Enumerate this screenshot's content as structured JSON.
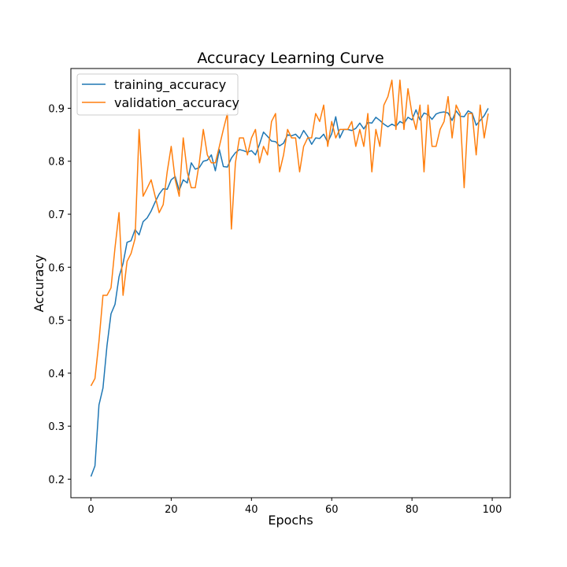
{
  "chart_data": {
    "type": "line",
    "title": "Accuracy Learning Curve",
    "xlabel": "Epochs",
    "ylabel": "Accuracy",
    "xlim": [
      -5,
      104.5
    ],
    "ylim": [
      0.165,
      0.975
    ],
    "xticks": [
      0,
      20,
      40,
      60,
      80,
      100
    ],
    "yticks": [
      0.2,
      0.3,
      0.4,
      0.5,
      0.6,
      0.7,
      0.8,
      0.9
    ],
    "grid": false,
    "legend_position": "top-left",
    "series": [
      {
        "name": "training_accuracy",
        "color": "#1f77b4",
        "values": [
          0.205,
          0.225,
          0.34,
          0.372,
          0.452,
          0.512,
          0.53,
          0.582,
          0.607,
          0.647,
          0.65,
          0.671,
          0.661,
          0.686,
          0.693,
          0.706,
          0.723,
          0.738,
          0.748,
          0.747,
          0.765,
          0.771,
          0.745,
          0.765,
          0.759,
          0.797,
          0.785,
          0.788,
          0.8,
          0.802,
          0.812,
          0.782,
          0.822,
          0.79,
          0.789,
          0.806,
          0.816,
          0.822,
          0.82,
          0.817,
          0.82,
          0.812,
          0.832,
          0.855,
          0.847,
          0.838,
          0.837,
          0.829,
          0.834,
          0.85,
          0.848,
          0.851,
          0.843,
          0.858,
          0.847,
          0.832,
          0.844,
          0.843,
          0.851,
          0.836,
          0.852,
          0.884,
          0.844,
          0.86,
          0.86,
          0.858,
          0.862,
          0.872,
          0.861,
          0.873,
          0.872,
          0.883,
          0.877,
          0.87,
          0.865,
          0.87,
          0.866,
          0.875,
          0.871,
          0.883,
          0.878,
          0.897,
          0.878,
          0.891,
          0.888,
          0.879,
          0.889,
          0.892,
          0.893,
          0.891,
          0.877,
          0.895,
          0.885,
          0.884,
          0.895,
          0.891,
          0.868,
          0.877,
          0.886,
          0.9
        ]
      },
      {
        "name": "validation_accuracy",
        "color": "#ff7f0e",
        "values": [
          0.376,
          0.39,
          0.46,
          0.547,
          0.547,
          0.561,
          0.637,
          0.703,
          0.547,
          0.611,
          0.626,
          0.654,
          0.86,
          0.734,
          0.749,
          0.765,
          0.734,
          0.703,
          0.718,
          0.78,
          0.828,
          0.765,
          0.734,
          0.844,
          0.78,
          0.75,
          0.75,
          0.797,
          0.86,
          0.812,
          0.797,
          0.797,
          0.828,
          0.86,
          0.89,
          0.672,
          0.797,
          0.844,
          0.844,
          0.812,
          0.844,
          0.86,
          0.797,
          0.828,
          0.812,
          0.875,
          0.89,
          0.78,
          0.812,
          0.86,
          0.844,
          0.844,
          0.78,
          0.828,
          0.844,
          0.844,
          0.89,
          0.875,
          0.906,
          0.828,
          0.875,
          0.844,
          0.86,
          0.86,
          0.86,
          0.875,
          0.828,
          0.86,
          0.828,
          0.89,
          0.78,
          0.86,
          0.828,
          0.906,
          0.922,
          0.953,
          0.86,
          0.953,
          0.86,
          0.937,
          0.89,
          0.86,
          0.906,
          0.78,
          0.906,
          0.828,
          0.828,
          0.86,
          0.875,
          0.922,
          0.844,
          0.906,
          0.89,
          0.75,
          0.89,
          0.89,
          0.812,
          0.906,
          0.844,
          0.89
        ]
      }
    ]
  }
}
